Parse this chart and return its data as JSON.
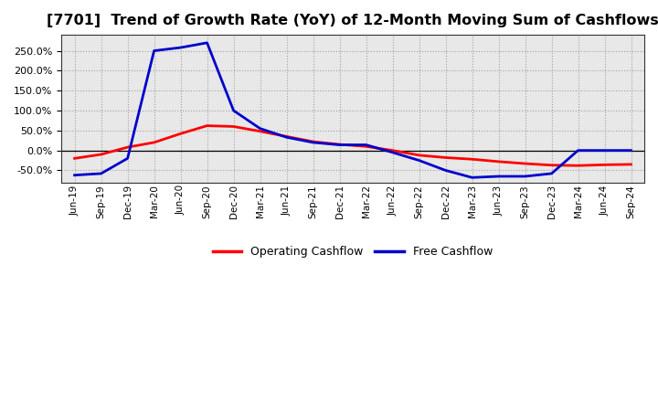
{
  "title": "[7701]  Trend of Growth Rate (YoY) of 12-Month Moving Sum of Cashflows",
  "title_fontsize": 11.5,
  "background_color": "#ffffff",
  "plot_background": "#e8e8e8",
  "grid_color": "#999999",
  "x_labels": [
    "Jun-19",
    "Sep-19",
    "Dec-19",
    "Mar-20",
    "Jun-20",
    "Sep-20",
    "Dec-20",
    "Mar-21",
    "Jun-21",
    "Sep-21",
    "Dec-21",
    "Mar-22",
    "Jun-22",
    "Sep-22",
    "Dec-22",
    "Mar-23",
    "Jun-23",
    "Sep-23",
    "Dec-23",
    "Mar-24",
    "Jun-24",
    "Sep-24"
  ],
  "operating_cashflow": [
    -20,
    -10,
    8,
    20,
    42,
    62,
    60,
    48,
    35,
    22,
    15,
    10,
    0,
    -12,
    -18,
    -22,
    -28,
    -33,
    -37,
    -38,
    -36,
    -35
  ],
  "free_cashflow": [
    -62,
    -58,
    -20,
    250,
    258,
    270,
    100,
    55,
    33,
    20,
    14,
    14,
    -5,
    -25,
    -50,
    -68,
    -65,
    -65,
    -58,
    0,
    0,
    0
  ],
  "operating_color": "#ff0000",
  "free_color": "#0000cc",
  "line_width": 2.0,
  "ylim": [
    -80,
    290
  ],
  "yticks": [
    -50,
    0,
    50,
    100,
    150,
    200,
    250
  ],
  "legend_labels": [
    "Operating Cashflow",
    "Free Cashflow"
  ],
  "legend_colors": [
    "#ff0000",
    "#0000cc"
  ]
}
